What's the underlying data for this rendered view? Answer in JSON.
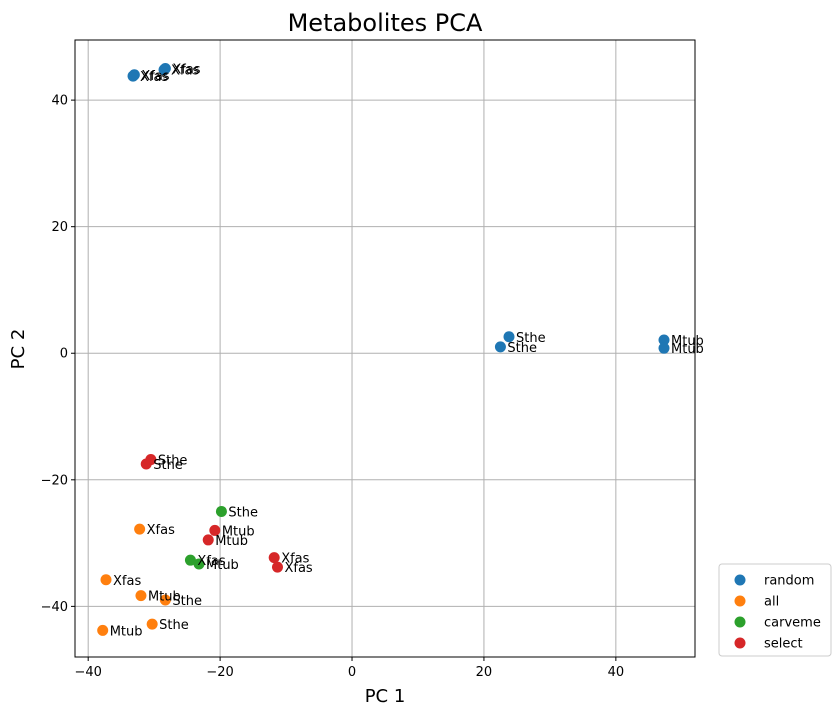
{
  "chart_data": {
    "type": "scatter",
    "title": "Metabolites PCA",
    "xlabel": "PC 1",
    "ylabel": "PC 2",
    "xlim": [
      -42,
      52
    ],
    "ylim": [
      -48,
      49.5
    ],
    "xticks": [
      -40,
      -20,
      0,
      20,
      40
    ],
    "yticks": [
      -40,
      -20,
      0,
      20,
      40
    ],
    "grid": true,
    "legend_position": "outside-bottom-right",
    "series": [
      {
        "name": "random",
        "color": "#1f77b4",
        "points": [
          {
            "x": -33.0,
            "y": 44.0,
            "label": "Xfas"
          },
          {
            "x": -33.2,
            "y": 43.8,
            "label": "Xfas"
          },
          {
            "x": -28.3,
            "y": 45.0,
            "label": "Xfas"
          },
          {
            "x": -28.5,
            "y": 44.8,
            "label": "Xfas"
          },
          {
            "x": 23.8,
            "y": 2.6,
            "label": "Sthe"
          },
          {
            "x": 22.5,
            "y": 1.0,
            "label": "Sthe"
          },
          {
            "x": 47.3,
            "y": 2.1,
            "label": "Mtub"
          },
          {
            "x": 47.3,
            "y": 0.8,
            "label": "Mtub"
          }
        ]
      },
      {
        "name": "all",
        "color": "#ff7f0e",
        "points": [
          {
            "x": -32.2,
            "y": -27.8,
            "label": "Xfas"
          },
          {
            "x": -37.3,
            "y": -35.8,
            "label": "Xfas"
          },
          {
            "x": -32.0,
            "y": -38.3,
            "label": "Mtub"
          },
          {
            "x": -28.3,
            "y": -39.0,
            "label": "Sthe"
          },
          {
            "x": -37.8,
            "y": -43.8,
            "label": "Mtub"
          },
          {
            "x": -30.3,
            "y": -42.8,
            "label": "Sthe"
          }
        ]
      },
      {
        "name": "carveme",
        "color": "#2ca02c",
        "points": [
          {
            "x": -19.8,
            "y": -25.0,
            "label": "Sthe"
          },
          {
            "x": -24.5,
            "y": -32.7,
            "label": "Xfas"
          },
          {
            "x": -23.2,
            "y": -33.3,
            "label": "Mtub"
          }
        ]
      },
      {
        "name": "select",
        "color": "#d62728",
        "points": [
          {
            "x": -30.5,
            "y": -16.8,
            "label": "Sthe"
          },
          {
            "x": -31.2,
            "y": -17.5,
            "label": "Sthe"
          },
          {
            "x": -20.8,
            "y": -28.0,
            "label": "Mtub"
          },
          {
            "x": -21.8,
            "y": -29.5,
            "label": "Mtub"
          },
          {
            "x": -11.8,
            "y": -32.3,
            "label": "Xfas"
          },
          {
            "x": -11.3,
            "y": -33.8,
            "label": "Xfas"
          }
        ]
      }
    ]
  }
}
